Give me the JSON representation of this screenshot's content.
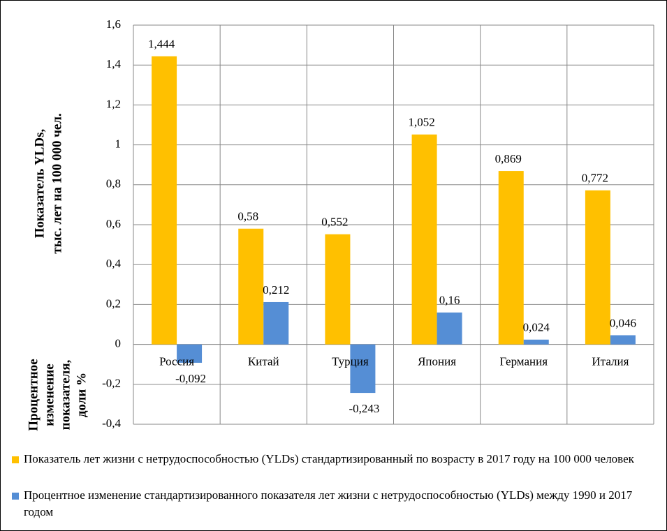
{
  "chart_data": {
    "type": "bar",
    "ylabel_top": [
      "Показатель YLDs,",
      "тыс. лет на 100 000 чел."
    ],
    "ylabel_bottom": [
      "Процентное",
      "изменение",
      "показателя,",
      "доли %"
    ],
    "categories": [
      "Россия",
      "Китай",
      "Турция",
      "Япония",
      "Германия",
      "Италия"
    ],
    "series": [
      {
        "name": "Показатель лет жизни с нетрудоспособностью (YLDs) стандартизированный по возрасту в 2017 году на 100 000 человек",
        "color": "#FFC000",
        "values": [
          1.444,
          0.58,
          0.552,
          1.052,
          0.869,
          0.772
        ],
        "value_labels": [
          "1,444",
          "0,58",
          "0,552",
          "1,052",
          "0,869",
          "0,772"
        ]
      },
      {
        "name": "Процентное изменение стандартизированного показателя лет жизни с нетрудоспособностью (YLDs) между 1990 и 2017 годом",
        "color": "#558ED5",
        "values": [
          -0.092,
          0.212,
          -0.243,
          0.16,
          0.024,
          0.046
        ],
        "value_labels": [
          "-0,092",
          "0,212",
          "-0,243",
          "0,16",
          "0,024",
          "0,046"
        ]
      }
    ],
    "ylim": [
      -0.4,
      1.6
    ],
    "yticks": [
      {
        "value": -0.4,
        "label": "-0,4"
      },
      {
        "value": -0.2,
        "label": "-0,2"
      },
      0,
      {
        "value": 0.2,
        "label": "0,2"
      },
      {
        "value": 0.4,
        "label": "0,4"
      },
      {
        "value": 0.6,
        "label": "0,6"
      },
      {
        "value": 0.8,
        "label": "0,8"
      },
      1,
      {
        "value": 1.2,
        "label": "1,2"
      },
      {
        "value": 1.4,
        "label": "1,4"
      },
      {
        "value": 1.6,
        "label": "1,6"
      }
    ],
    "grid": true
  }
}
